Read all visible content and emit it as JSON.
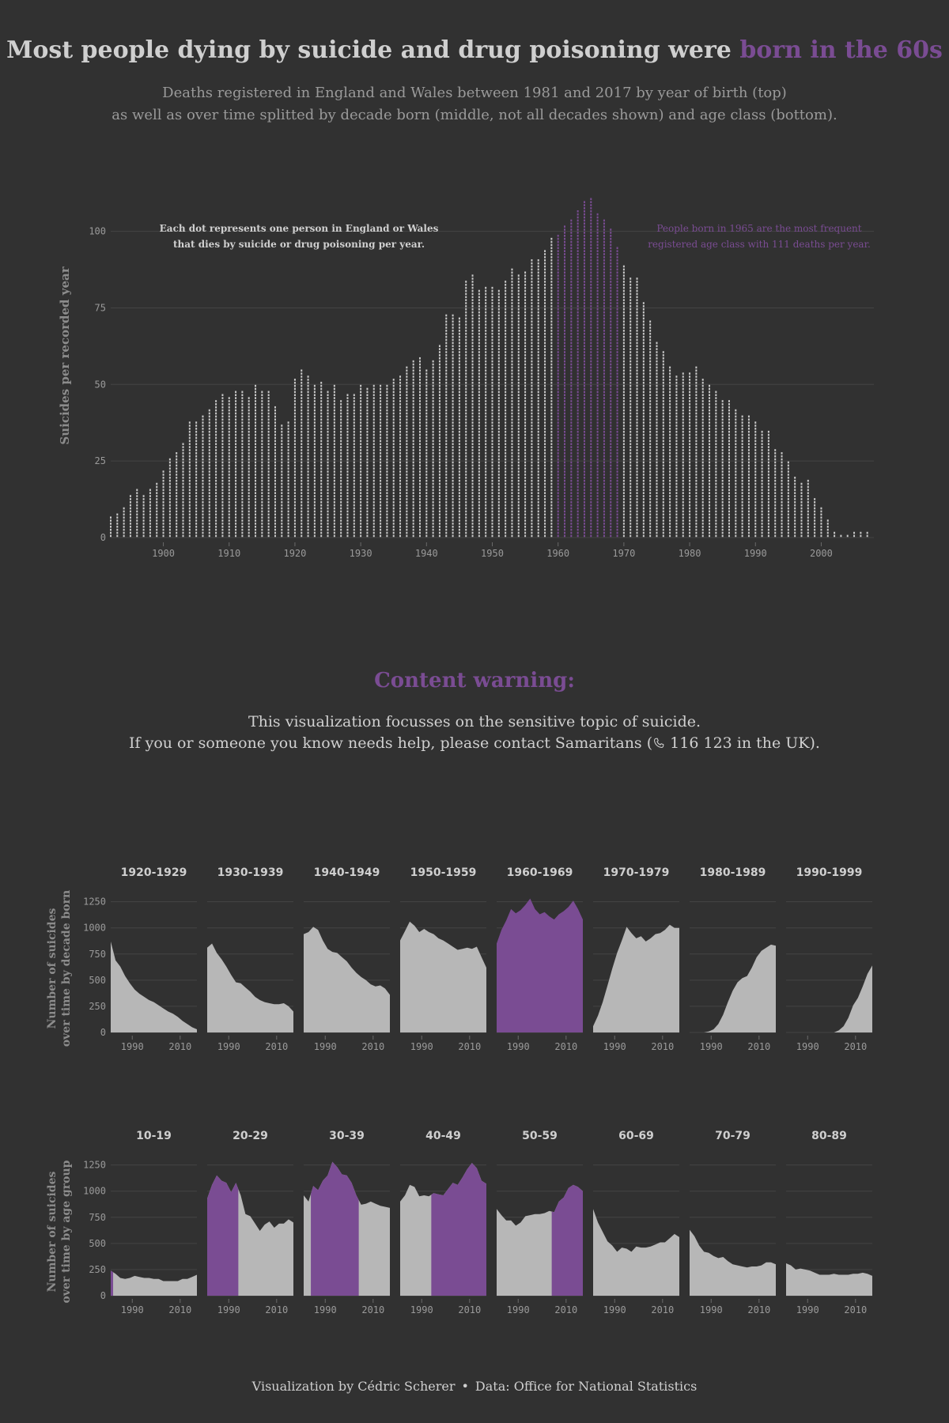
{
  "title": {
    "main": "Most people dying by suicide and drug poisoning were ",
    "highlight": "born in the 60s"
  },
  "subtitle": {
    "line1": "Deaths registered in England and Wales between 1981 and 2017 by year of birth (top)",
    "line2": "as well as over time splitted by decade born (middle, not all decades shown) and age class (bottom)."
  },
  "colors": {
    "background": "#313131",
    "dot": "#c9c9c9",
    "highlight": "#7a4c93",
    "area": "#b7b7b7",
    "grid": "#444444"
  },
  "content_warning": {
    "title": "Content warning:",
    "line1": "This visualization focusses on the sensitive topic of suicide.",
    "line2_before": "If you or someone you know needs help, please contact Samaritans (",
    "phone_icon": "phone-icon",
    "line2_after": " 116 123 in the UK)."
  },
  "footer": {
    "credit": "Visualization by Cédric Scherer",
    "separator": "•",
    "source": "Data: Office for National Statistics"
  },
  "chart_data": [
    {
      "type": "scatter",
      "name": "dot-plot-by-year-of-birth",
      "ylabel": "Suicides per recorded year",
      "x_ticks": [
        "1900",
        "1910",
        "1920",
        "1930",
        "1940",
        "1950",
        "1960",
        "1970",
        "1980",
        "1990",
        "2000"
      ],
      "y_ticks": [
        "0",
        "25",
        "50",
        "75",
        "100"
      ],
      "xlim": [
        1892,
        2008
      ],
      "ylim": [
        0,
        111
      ],
      "grid": true,
      "highlight_range": [
        1960,
        1969
      ],
      "annotation_left": [
        "Each dot represents one person in England or Wales",
        "that dies by suicide or drug poisoning per year."
      ],
      "annotation_right": [
        "People born in 1965 are the most frequent",
        "registered age class with 111 deaths per year."
      ],
      "x": [
        1892,
        1893,
        1894,
        1895,
        1896,
        1897,
        1898,
        1899,
        1900,
        1901,
        1902,
        1903,
        1904,
        1905,
        1906,
        1907,
        1908,
        1909,
        1910,
        1911,
        1912,
        1913,
        1914,
        1915,
        1916,
        1917,
        1918,
        1919,
        1920,
        1921,
        1922,
        1923,
        1924,
        1925,
        1926,
        1927,
        1928,
        1929,
        1930,
        1931,
        1932,
        1933,
        1934,
        1935,
        1936,
        1937,
        1938,
        1939,
        1940,
        1941,
        1942,
        1943,
        1944,
        1945,
        1946,
        1947,
        1948,
        1949,
        1950,
        1951,
        1952,
        1953,
        1954,
        1955,
        1956,
        1957,
        1958,
        1959,
        1960,
        1961,
        1962,
        1963,
        1964,
        1965,
        1966,
        1967,
        1968,
        1969,
        1970,
        1971,
        1972,
        1973,
        1974,
        1975,
        1976,
        1977,
        1978,
        1979,
        1980,
        1981,
        1982,
        1983,
        1984,
        1985,
        1986,
        1987,
        1988,
        1989,
        1990,
        1991,
        1992,
        1993,
        1994,
        1995,
        1996,
        1997,
        1998,
        1999,
        2000,
        2001,
        2002,
        2003,
        2004,
        2005,
        2006,
        2007
      ],
      "y": [
        7,
        8,
        10,
        14,
        16,
        14,
        16,
        18,
        22,
        26,
        28,
        31,
        38,
        38,
        40,
        42,
        45,
        47,
        46,
        48,
        48,
        46,
        50,
        48,
        48,
        43,
        37,
        38,
        52,
        55,
        53,
        50,
        51,
        48,
        50,
        45,
        47,
        47,
        50,
        49,
        50,
        50,
        50,
        52,
        53,
        56,
        58,
        59,
        55,
        58,
        63,
        73,
        73,
        72,
        84,
        86,
        81,
        82,
        82,
        81,
        84,
        88,
        86,
        87,
        91,
        91,
        94,
        98,
        99,
        102,
        104,
        107,
        110,
        111,
        106,
        104,
        101,
        95,
        89,
        85,
        85,
        77,
        71,
        64,
        61,
        56,
        53,
        54,
        54,
        56,
        52,
        50,
        48,
        45,
        45,
        42,
        40,
        40,
        38,
        35,
        35,
        29,
        28,
        25,
        20,
        18,
        19,
        13,
        10,
        6,
        2,
        1,
        1,
        2,
        2,
        2
      ]
    },
    {
      "type": "area",
      "name": "suicides-by-decade-born",
      "ylabel": [
        "Number of suicides",
        "over time by decade born"
      ],
      "x_ticks": [
        "1990",
        "2010"
      ],
      "y_ticks": [
        "0",
        "250",
        "500",
        "750",
        "1000",
        "1250"
      ],
      "xlim": [
        1981,
        2017
      ],
      "ylim": [
        0,
        1250
      ],
      "years": [
        1981,
        1983,
        1985,
        1987,
        1989,
        1991,
        1993,
        1995,
        1997,
        1999,
        2001,
        2003,
        2005,
        2007,
        2009,
        2011,
        2013,
        2015,
        2017
      ],
      "panels": [
        {
          "label": "1920-1929",
          "highlight": false,
          "values": [
            870,
            690,
            630,
            540,
            470,
            410,
            370,
            340,
            310,
            290,
            260,
            230,
            200,
            180,
            150,
            110,
            80,
            50,
            30
          ]
        },
        {
          "label": "1930-1939",
          "highlight": false,
          "values": [
            810,
            850,
            760,
            700,
            630,
            550,
            480,
            470,
            430,
            390,
            340,
            310,
            290,
            280,
            270,
            270,
            280,
            250,
            200
          ]
        },
        {
          "label": "1940-1949",
          "highlight": false,
          "values": [
            940,
            960,
            1010,
            980,
            880,
            800,
            770,
            760,
            720,
            680,
            620,
            570,
            530,
            500,
            460,
            440,
            450,
            420,
            360
          ]
        },
        {
          "label": "1950-1959",
          "highlight": false,
          "values": [
            880,
            970,
            1060,
            1020,
            960,
            990,
            960,
            940,
            900,
            880,
            850,
            820,
            790,
            800,
            810,
            800,
            820,
            720,
            620
          ]
        },
        {
          "label": "1960-1969",
          "highlight": true,
          "values": [
            850,
            980,
            1070,
            1180,
            1140,
            1170,
            1220,
            1280,
            1180,
            1130,
            1150,
            1110,
            1080,
            1130,
            1160,
            1200,
            1260,
            1180,
            1080
          ]
        },
        {
          "label": "1970-1979",
          "highlight": false,
          "values": [
            60,
            160,
            290,
            450,
            610,
            760,
            880,
            1010,
            950,
            900,
            920,
            870,
            900,
            940,
            950,
            980,
            1030,
            1000,
            1000
          ]
        },
        {
          "label": "1980-1989",
          "highlight": false,
          "values": [
            0,
            0,
            0,
            0,
            10,
            30,
            80,
            170,
            290,
            400,
            480,
            520,
            540,
            620,
            720,
            780,
            810,
            840,
            830
          ]
        },
        {
          "label": "1990-1999",
          "highlight": false,
          "values": [
            0,
            0,
            0,
            0,
            0,
            0,
            0,
            0,
            0,
            0,
            0,
            20,
            60,
            140,
            260,
            330,
            440,
            560,
            640
          ]
        }
      ]
    },
    {
      "type": "area",
      "name": "suicides-by-age-group",
      "ylabel": [
        "Number of suicides",
        "over time by age group"
      ],
      "x_ticks": [
        "1990",
        "2010"
      ],
      "y_ticks": [
        "0",
        "250",
        "500",
        "750",
        "1000",
        "1250"
      ],
      "xlim": [
        1981,
        2017
      ],
      "ylim": [
        0,
        1250
      ],
      "years": [
        1981,
        1983,
        1985,
        1987,
        1989,
        1991,
        1993,
        1995,
        1997,
        1999,
        2001,
        2003,
        2005,
        2007,
        2009,
        2011,
        2013,
        2015,
        2017
      ],
      "panels": [
        {
          "label": "10-19",
          "highlight_from": 1981,
          "highlight_to": 1982,
          "values": [
            240,
            210,
            170,
            160,
            170,
            190,
            180,
            170,
            170,
            160,
            160,
            140,
            140,
            140,
            140,
            160,
            160,
            180,
            200
          ]
        },
        {
          "label": "20-29",
          "highlight_from": 1981,
          "highlight_to": 1994,
          "values": [
            930,
            1060,
            1150,
            1100,
            1080,
            990,
            1080,
            960,
            780,
            760,
            690,
            620,
            680,
            710,
            650,
            690,
            690,
            730,
            700
          ]
        },
        {
          "label": "30-39",
          "highlight_from": 1984,
          "highlight_to": 2004,
          "values": [
            960,
            900,
            1050,
            1010,
            1100,
            1150,
            1280,
            1230,
            1160,
            1150,
            1080,
            960,
            870,
            880,
            900,
            880,
            860,
            850,
            840
          ]
        },
        {
          "label": "40-49",
          "highlight_from": 1994,
          "highlight_to": 2017,
          "values": [
            900,
            960,
            1060,
            1040,
            950,
            960,
            950,
            980,
            970,
            960,
            1020,
            1080,
            1060,
            1130,
            1210,
            1270,
            1220,
            1100,
            1070
          ]
        },
        {
          "label": "50-59",
          "highlight_from": 2004,
          "highlight_to": 2017,
          "values": [
            830,
            770,
            720,
            720,
            670,
            700,
            760,
            770,
            780,
            780,
            790,
            810,
            800,
            900,
            940,
            1030,
            1060,
            1040,
            1000
          ]
        },
        {
          "label": "60-69",
          "highlight_from": null,
          "highlight_to": null,
          "values": [
            830,
            700,
            610,
            520,
            480,
            420,
            460,
            450,
            420,
            470,
            460,
            460,
            470,
            490,
            510,
            510,
            550,
            590,
            560
          ]
        },
        {
          "label": "70-79",
          "highlight_from": null,
          "highlight_to": null,
          "values": [
            630,
            570,
            480,
            420,
            410,
            380,
            360,
            370,
            330,
            300,
            290,
            280,
            270,
            280,
            280,
            290,
            320,
            320,
            300
          ]
        },
        {
          "label": "80-89",
          "highlight_from": null,
          "highlight_to": null,
          "values": [
            310,
            290,
            250,
            260,
            250,
            240,
            220,
            200,
            200,
            200,
            210,
            200,
            200,
            200,
            210,
            210,
            220,
            210,
            190
          ]
        }
      ]
    }
  ]
}
